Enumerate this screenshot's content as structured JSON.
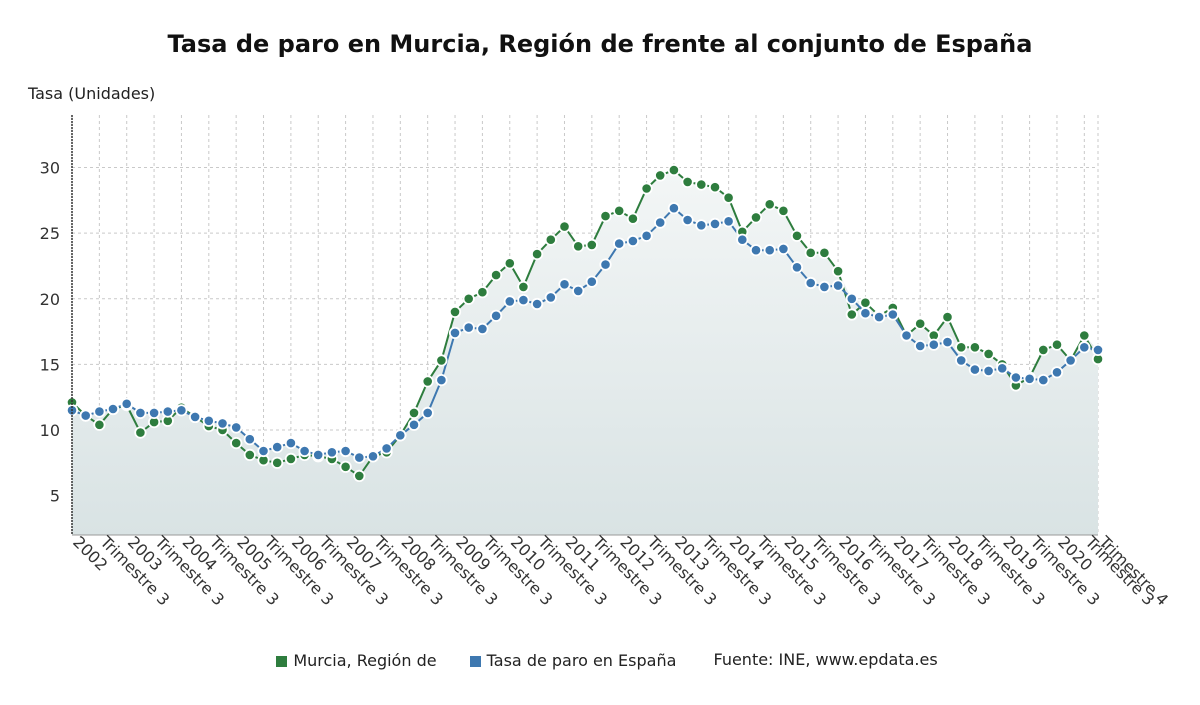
{
  "chart_data": {
    "type": "line",
    "title": "Tasa de paro en Murcia, Región de frente al conjunto de España",
    "ylabel": "Tasa (Unidades)",
    "xlabel": "",
    "ylim": [
      2,
      34
    ],
    "yticks": [
      5,
      10,
      15,
      20,
      25,
      30
    ],
    "grid": true,
    "legend_position": "bottom",
    "source_label": "Fuente: INE, www.epdata.es",
    "x_tick_labels": [
      "2002",
      "Trimestre 3",
      "2003",
      "Trimestre 3",
      "2004",
      "Trimestre 3",
      "2005",
      "Trimestre 3",
      "2006",
      "Trimestre 3",
      "2007",
      "Trimestre 3",
      "2008",
      "Trimestre 3",
      "2009",
      "Trimestre 3",
      "2010",
      "Trimestre 3",
      "2011",
      "Trimestre 3",
      "2012",
      "Trimestre 3",
      "2013",
      "Trimestre 3",
      "2014",
      "Trimestre 3",
      "2015",
      "Trimestre 3",
      "2016",
      "Trimestre 3",
      "2017",
      "Trimestre 3",
      "2018",
      "Trimestre 3",
      "2019",
      "Trimestre 3",
      "2020",
      "Trimestre 3",
      "Trimestre 4"
    ],
    "x": [
      "2002 T1",
      "2002 T2",
      "2002 T3",
      "2002 T4",
      "2003 T1",
      "2003 T2",
      "2003 T3",
      "2003 T4",
      "2004 T1",
      "2004 T2",
      "2004 T3",
      "2004 T4",
      "2005 T1",
      "2005 T2",
      "2005 T3",
      "2005 T4",
      "2006 T1",
      "2006 T2",
      "2006 T3",
      "2006 T4",
      "2007 T1",
      "2007 T2",
      "2007 T3",
      "2007 T4",
      "2008 T1",
      "2008 T2",
      "2008 T3",
      "2008 T4",
      "2009 T1",
      "2009 T2",
      "2009 T3",
      "2009 T4",
      "2010 T1",
      "2010 T2",
      "2010 T3",
      "2010 T4",
      "2011 T1",
      "2011 T2",
      "2011 T3",
      "2011 T4",
      "2012 T1",
      "2012 T2",
      "2012 T3",
      "2012 T4",
      "2013 T1",
      "2013 T2",
      "2013 T3",
      "2013 T4",
      "2014 T1",
      "2014 T2",
      "2014 T3",
      "2014 T4",
      "2015 T1",
      "2015 T2",
      "2015 T3",
      "2015 T4",
      "2016 T1",
      "2016 T2",
      "2016 T3",
      "2016 T4",
      "2017 T1",
      "2017 T2",
      "2017 T3",
      "2017 T4",
      "2018 T1",
      "2018 T2",
      "2018 T3",
      "2018 T4",
      "2019 T1",
      "2019 T2",
      "2019 T3",
      "2019 T4",
      "2020 T1",
      "2020 T2",
      "2020 T3",
      "2020 T4"
    ],
    "series": [
      {
        "name": "Murcia, Región de",
        "color": "#2e7d3e",
        "values": [
          12.1,
          11.1,
          10.4,
          11.6,
          11.9,
          9.8,
          10.6,
          10.7,
          11.7,
          11.0,
          10.3,
          10.0,
          9.0,
          8.1,
          7.7,
          7.5,
          7.8,
          8.1,
          8.0,
          7.8,
          7.2,
          6.5,
          8.0,
          8.3,
          9.6,
          11.3,
          13.7,
          15.3,
          19.0,
          20.0,
          20.5,
          21.8,
          22.7,
          20.9,
          23.4,
          24.5,
          25.5,
          24.0,
          24.1,
          26.3,
          26.7,
          26.1,
          28.4,
          29.4,
          29.8,
          28.9,
          28.7,
          28.5,
          27.7,
          25.1,
          26.2,
          27.2,
          26.7,
          24.8,
          23.5,
          23.5,
          22.1,
          18.8,
          19.7,
          18.7,
          19.3,
          17.2,
          18.1,
          17.2,
          18.6,
          16.3,
          16.3,
          15.8,
          15.0,
          13.4,
          14.0,
          16.1,
          16.5,
          15.3,
          17.2,
          15.4
        ]
      },
      {
        "name": "Tasa de paro en España",
        "color": "#3e78b0",
        "values": [
          11.5,
          11.1,
          11.4,
          11.6,
          12.0,
          11.3,
          11.3,
          11.4,
          11.5,
          11.0,
          10.7,
          10.5,
          10.2,
          9.3,
          8.4,
          8.7,
          9.0,
          8.4,
          8.1,
          8.3,
          8.4,
          7.9,
          8.0,
          8.6,
          9.6,
          10.4,
          11.3,
          13.8,
          17.4,
          17.8,
          17.7,
          18.7,
          19.8,
          19.9,
          19.6,
          20.1,
          21.1,
          20.6,
          21.3,
          22.6,
          24.2,
          24.4,
          24.8,
          25.8,
          26.9,
          26.0,
          25.6,
          25.7,
          25.9,
          24.5,
          23.7,
          23.7,
          23.8,
          22.4,
          21.2,
          20.9,
          21.0,
          20.0,
          18.9,
          18.6,
          18.8,
          17.2,
          16.4,
          16.5,
          16.7,
          15.3,
          14.6,
          14.5,
          14.7,
          14.0,
          13.9,
          13.8,
          14.4,
          15.3,
          16.3,
          16.1
        ]
      }
    ]
  }
}
